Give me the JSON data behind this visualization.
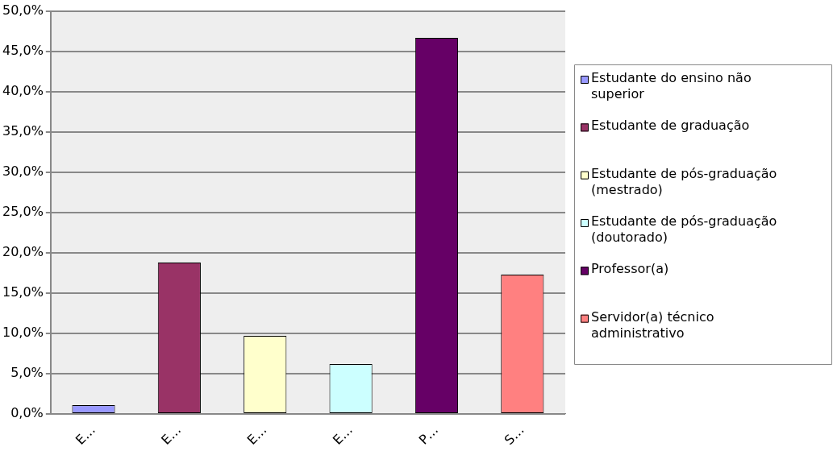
{
  "chart_data": {
    "type": "bar",
    "categories": [
      "E…",
      "E…",
      "E…",
      "E…",
      "P…",
      "S…"
    ],
    "series": [
      {
        "name": "Estudante do ensino não superior",
        "color": "#9999ff",
        "values": [
          1.1,
          null,
          null,
          null,
          null,
          null
        ]
      },
      {
        "name": "Estudante de graduação",
        "color": "#993366",
        "values": [
          null,
          18.8,
          null,
          null,
          null,
          null
        ]
      },
      {
        "name": "Estudante de pós-graduação (mestrado)",
        "color": "#ffffcc",
        "values": [
          null,
          null,
          9.7,
          null,
          null,
          null
        ]
      },
      {
        "name": "Estudante de pós-graduação (doutorado)",
        "color": "#ccffff",
        "values": [
          null,
          null,
          null,
          6.2,
          null,
          null
        ]
      },
      {
        "name": "Professor(a)",
        "color": "#660066",
        "values": [
          null,
          null,
          null,
          null,
          46.7,
          null
        ]
      },
      {
        "name": "Servidor(a) técnico administrativo",
        "color": "#ff8080",
        "values": [
          null,
          null,
          null,
          null,
          null,
          17.3
        ]
      }
    ],
    "ylim": [
      0,
      50
    ],
    "yticks": [
      {
        "value": 0,
        "label": "0,0%"
      },
      {
        "value": 5,
        "label": "5,0%"
      },
      {
        "value": 10,
        "label": "10,0%"
      },
      {
        "value": 15,
        "label": "15,0%"
      },
      {
        "value": 20,
        "label": "20,0%"
      },
      {
        "value": 25,
        "label": "25,0%"
      },
      {
        "value": 30,
        "label": "30,0%"
      },
      {
        "value": 35,
        "label": "35,0%"
      },
      {
        "value": 40,
        "label": "40,0%"
      },
      {
        "value": 45,
        "label": "45,0%"
      },
      {
        "value": 50,
        "label": "50,0%"
      }
    ],
    "grid": "y",
    "legend": "right"
  }
}
